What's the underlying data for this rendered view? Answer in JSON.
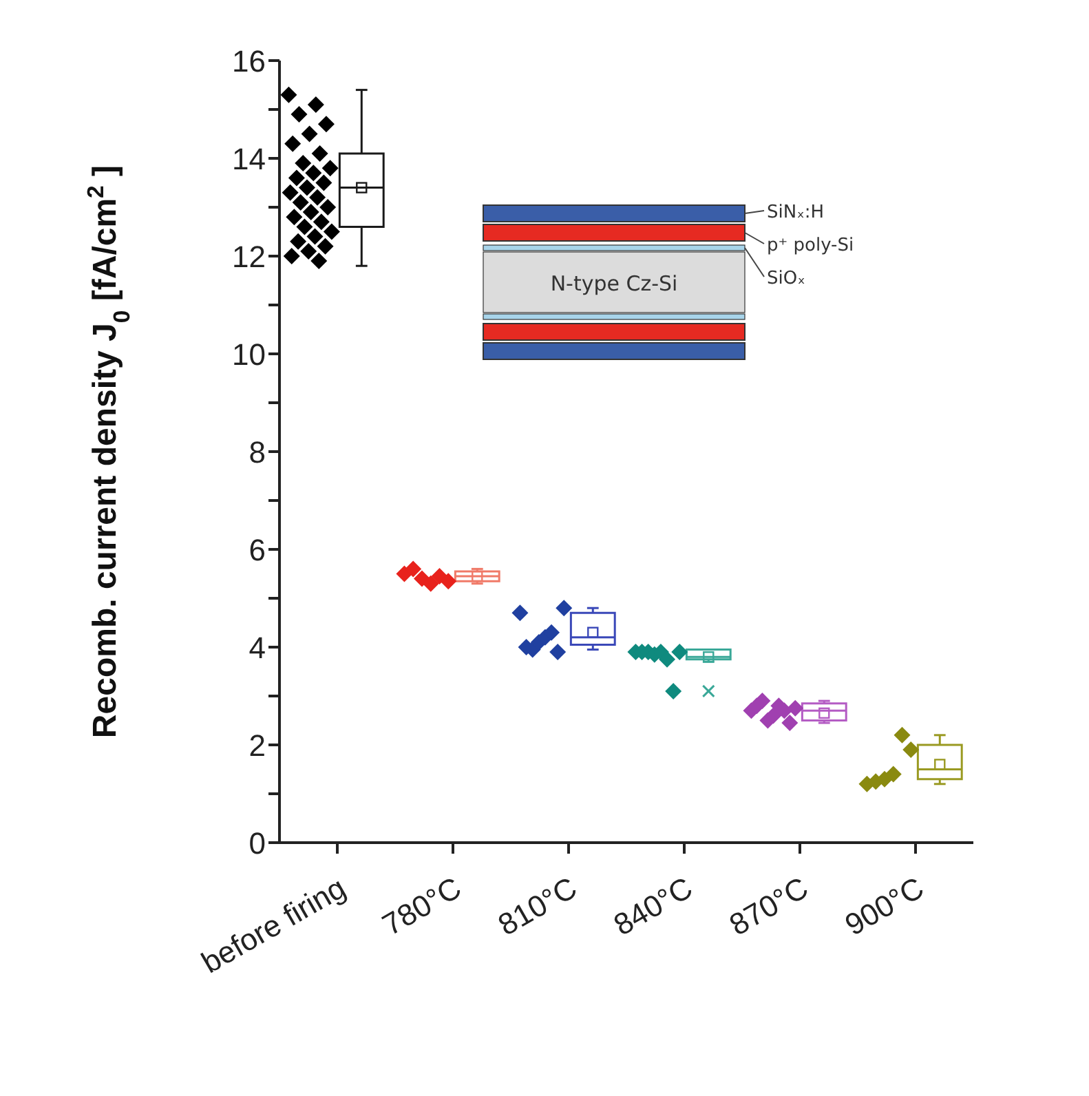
{
  "chart_data": {
    "type": "box",
    "ylabel": "Recomb. current density J$_{0}$ [fA/cm$^{2}$]",
    "categories": [
      "before firing",
      "780°C",
      "810°C",
      "840°C",
      "870°C",
      "900°C"
    ],
    "ylim": [
      0,
      16
    ],
    "yticks": [
      0,
      {
        "value": 1,
        "label": null
      },
      2,
      {
        "value": 3,
        "label": null
      },
      4,
      {
        "value": 5,
        "label": null
      },
      6,
      {
        "value": 7,
        "label": null
      },
      8,
      {
        "value": 9,
        "label": null
      },
      10,
      {
        "value": 11,
        "label": null
      },
      12,
      {
        "value": 13,
        "label": null
      },
      14,
      {
        "value": 15,
        "label": null
      },
      16
    ],
    "grid": false,
    "legend": false,
    "boxes": [
      {
        "low": 11.8,
        "q1": 12.6,
        "median": 13.4,
        "q3": 14.1,
        "high": 15.4,
        "mean": 13.4
      },
      {
        "low": 5.3,
        "q1": 5.35,
        "median": 5.45,
        "q3": 5.55,
        "high": 5.6,
        "mean": 5.45
      },
      {
        "low": 3.95,
        "q1": 4.05,
        "median": 4.2,
        "q3": 4.7,
        "high": 4.8,
        "mean": 4.3
      },
      {
        "low": 3.7,
        "q1": 3.75,
        "median": 3.8,
        "q3": 3.95,
        "high": 3.95,
        "mean": 3.8,
        "outliers": [
          3.1
        ]
      },
      {
        "low": 2.45,
        "q1": 2.5,
        "median": 2.7,
        "q3": 2.85,
        "high": 2.9,
        "mean": 2.65
      },
      {
        "low": 1.2,
        "q1": 1.3,
        "median": 1.5,
        "q3": 2.0,
        "high": 2.2,
        "mean": 1.6
      }
    ],
    "colors": [
      "#1a1a1a",
      "#f07a68",
      "#3a48b8",
      "#3aa898",
      "#b45cc4",
      "#9a9a22"
    ],
    "series": [
      {
        "type": "scatter",
        "marker": "diamond",
        "color": "#000000",
        "x": [
          "before firing",
          "before firing",
          "before firing",
          "before firing",
          "before firing",
          "before firing",
          "before firing",
          "before firing",
          "before firing",
          "before firing",
          "before firing",
          "before firing",
          "before firing",
          "before firing",
          "before firing",
          "before firing",
          "before firing",
          "before firing",
          "before firing",
          "before firing",
          "before firing",
          "before firing",
          "before firing",
          "before firing",
          "before firing",
          "before firing",
          "before firing",
          "before firing"
        ],
        "values": [
          15.3,
          15.1,
          14.9,
          14.7,
          14.5,
          14.3,
          14.1,
          13.9,
          13.8,
          13.7,
          13.6,
          13.5,
          13.4,
          13.3,
          13.2,
          13.1,
          13.0,
          12.9,
          12.8,
          12.7,
          12.6,
          12.5,
          12.4,
          12.3,
          12.2,
          12.1,
          12.0,
          11.9
        ]
      },
      {
        "type": "scatter",
        "marker": "diamond",
        "color": "#e8221c",
        "x": [
          "780°C",
          "780°C",
          "780°C",
          "780°C",
          "780°C",
          "780°C"
        ],
        "values": [
          5.5,
          5.6,
          5.4,
          5.3,
          5.45,
          5.35
        ]
      },
      {
        "type": "scatter",
        "marker": "diamond",
        "color": "#2040a0",
        "x": [
          "810°C",
          "810°C",
          "810°C",
          "810°C",
          "810°C",
          "810°C",
          "810°C",
          "810°C"
        ],
        "values": [
          4.7,
          4.0,
          3.95,
          4.1,
          4.2,
          4.3,
          3.9,
          4.8
        ]
      },
      {
        "type": "scatter",
        "marker": "diamond",
        "color": "#0f8a7e",
        "x": [
          "840°C",
          "840°C",
          "840°C",
          "840°C",
          "840°C",
          "840°C",
          "840°C",
          "840°C"
        ],
        "values": [
          3.9,
          3.9,
          3.9,
          3.85,
          3.9,
          3.75,
          3.1,
          3.9
        ]
      },
      {
        "type": "scatter",
        "marker": "diamond",
        "color": "#a040b0",
        "x": [
          "870°C",
          "870°C",
          "870°C",
          "870°C",
          "870°C",
          "870°C",
          "870°C",
          "870°C",
          "870°C"
        ],
        "values": [
          2.7,
          2.8,
          2.9,
          2.5,
          2.6,
          2.8,
          2.7,
          2.45,
          2.75
        ]
      },
      {
        "type": "scatter",
        "marker": "diamond",
        "color": "#8a8a10",
        "x": [
          "900°C",
          "900°C",
          "900°C",
          "900°C",
          "900°C",
          "900°C"
        ],
        "values": [
          1.2,
          1.25,
          1.3,
          1.4,
          2.2,
          1.9
        ]
      }
    ],
    "annotations": [
      "N-type Cz-Si",
      "SiNₓ:H",
      "p⁺ poly-Si",
      "SiOₓ"
    ]
  }
}
